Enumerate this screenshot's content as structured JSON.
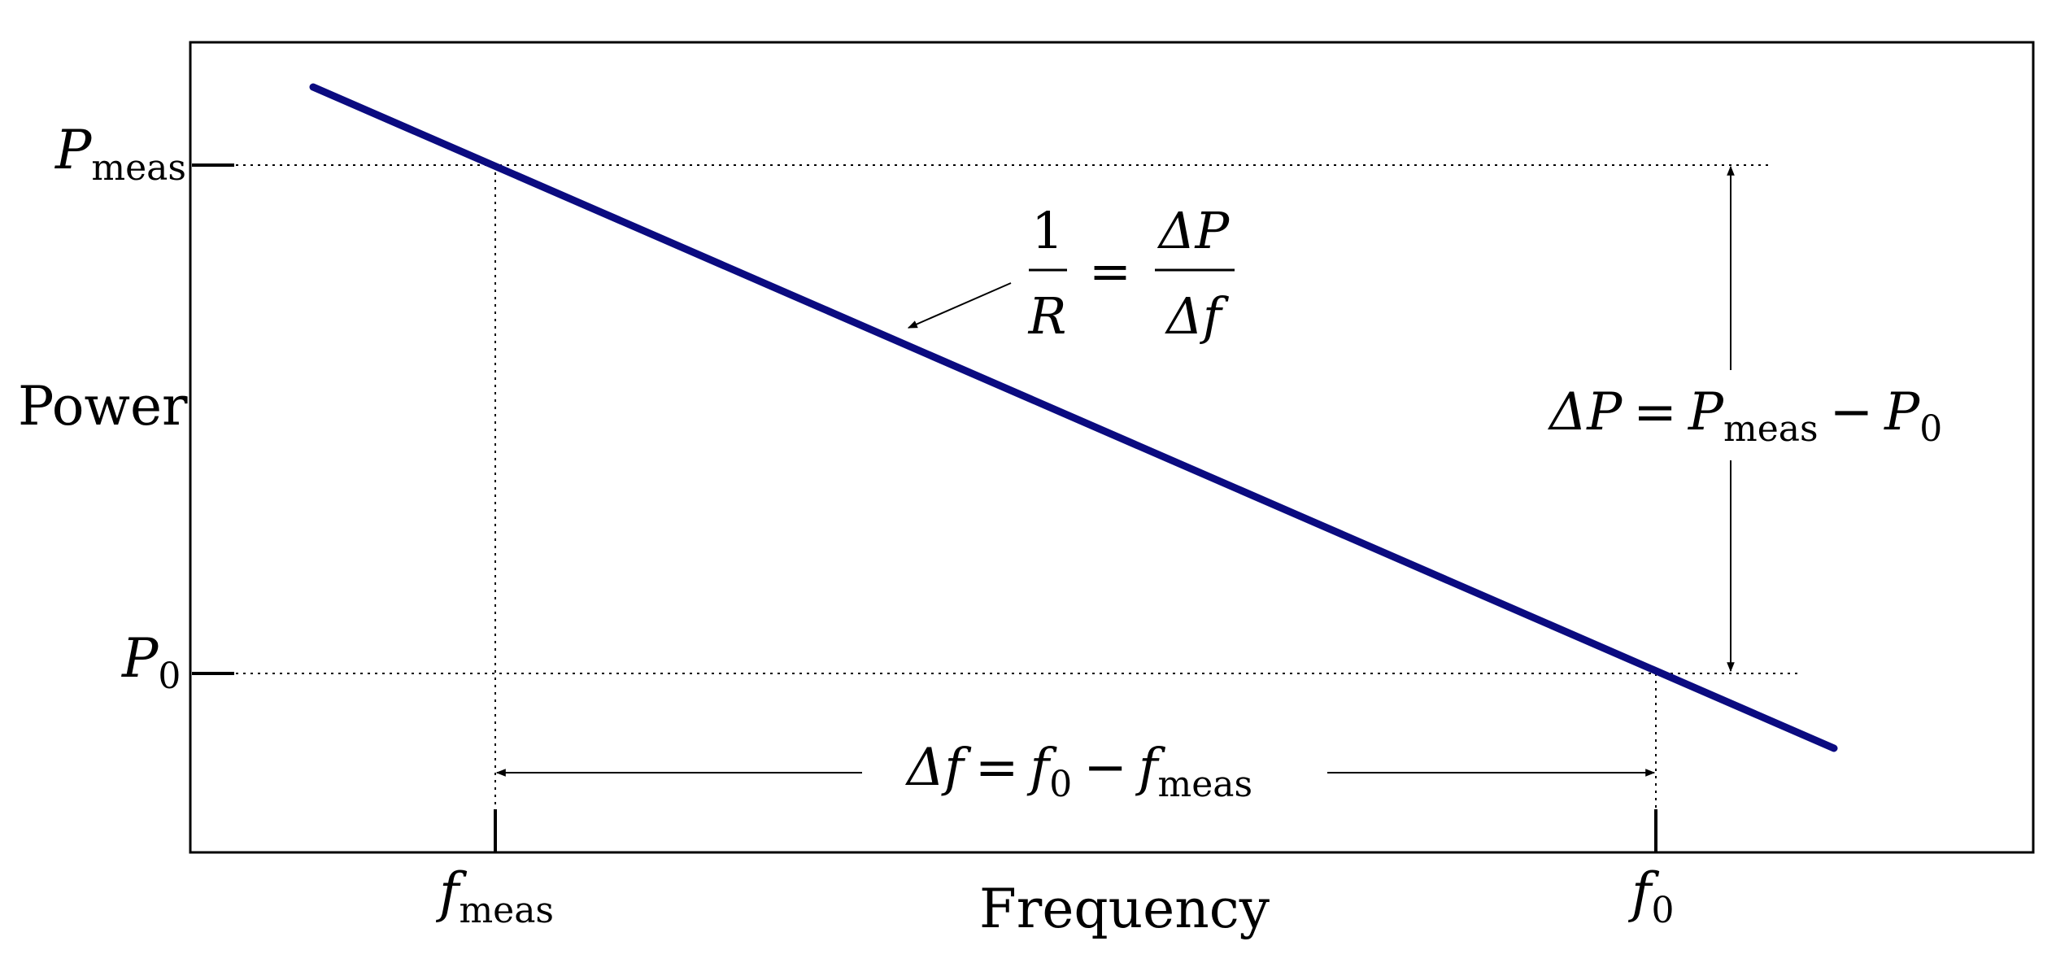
{
  "colors": {
    "line": "#0b0b80",
    "ink": "#000000",
    "background": "#ffffff"
  },
  "axes": {
    "y_label": "Power",
    "x_label": "Frequency",
    "y_ticks": [
      {
        "symbol": "P",
        "subscript": "meas"
      },
      {
        "symbol": "P",
        "subscript": "0"
      }
    ],
    "x_ticks": [
      {
        "symbol": "f",
        "subscript": "meas"
      },
      {
        "symbol": "f",
        "subscript": "0"
      }
    ]
  },
  "annotations": {
    "slope": {
      "numerator_left": "1",
      "denominator_left": "R",
      "equals": "=",
      "numerator_right": "ΔP",
      "denominator_right": "Δf"
    },
    "delta_p": {
      "lhs": "ΔP",
      "equals": "=",
      "term1": "P",
      "term1_sub": "meas",
      "minus": "−",
      "term2": "P",
      "term2_sub": "0"
    },
    "delta_f": {
      "lhs": "Δf",
      "equals": "=",
      "term1": "f",
      "term1_sub": "0",
      "minus": "−",
      "term2": "f",
      "term2_sub": "meas"
    }
  }
}
